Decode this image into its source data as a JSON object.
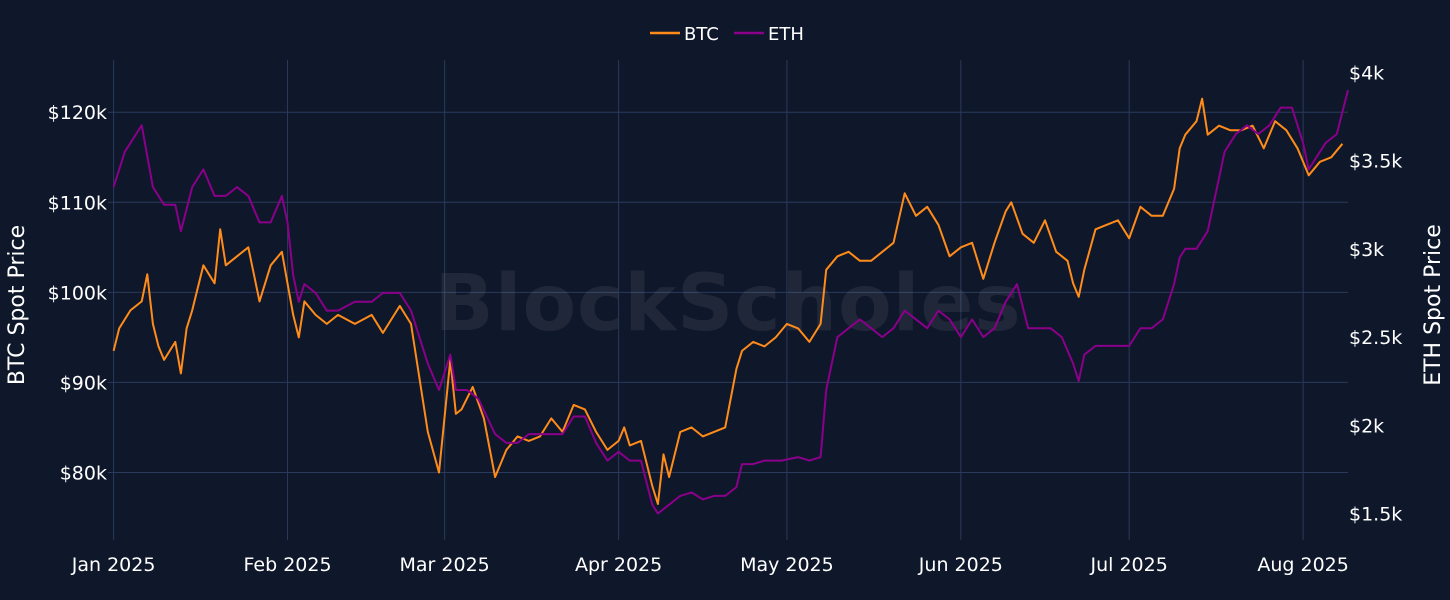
{
  "chart_data": {
    "type": "line",
    "title": "",
    "xlabel": "",
    "watermark": "BlockScholes",
    "legend_position": "top-center",
    "grid": true,
    "colors": {
      "background": "#0f172a",
      "grid": "#2a3a5c",
      "btc": "#ff8c1a",
      "eth": "#8b008b"
    },
    "x_range": [
      "2024-12-31",
      "2025-08-09"
    ],
    "x_ticks": [
      {
        "date": "2025-01-01",
        "label": "Jan 2025"
      },
      {
        "date": "2025-02-01",
        "label": "Feb 2025"
      },
      {
        "date": "2025-03-01",
        "label": "Mar 2025"
      },
      {
        "date": "2025-04-01",
        "label": "Apr 2025"
      },
      {
        "date": "2025-05-01",
        "label": "May 2025"
      },
      {
        "date": "2025-06-01",
        "label": "Jun 2025"
      },
      {
        "date": "2025-07-01",
        "label": "Jul 2025"
      },
      {
        "date": "2025-08-01",
        "label": "Aug 2025"
      }
    ],
    "y_left": {
      "label": "BTC Spot Price",
      "range": [
        72500,
        125800
      ],
      "ticks": [
        {
          "value": 80000,
          "label": "$80k"
        },
        {
          "value": 90000,
          "label": "$90k"
        },
        {
          "value": 100000,
          "label": "$100k"
        },
        {
          "value": 110000,
          "label": "$110k"
        },
        {
          "value": 120000,
          "label": "$120k"
        }
      ]
    },
    "y_right": {
      "label": "ETH Spot Price",
      "range": [
        1350,
        4070
      ],
      "ticks": [
        {
          "value": 1500,
          "label": "$1.5k"
        },
        {
          "value": 2000,
          "label": "$2k"
        },
        {
          "value": 2500,
          "label": "$2.5k"
        },
        {
          "value": 3000,
          "label": "$3k"
        },
        {
          "value": 3500,
          "label": "$3.5k"
        },
        {
          "value": 4000,
          "label": "$4k"
        }
      ]
    },
    "series": [
      {
        "name": "BTC",
        "axis": "left",
        "points": [
          [
            "2025-01-01",
            93500
          ],
          [
            "2025-01-02",
            96000
          ],
          [
            "2025-01-04",
            98000
          ],
          [
            "2025-01-06",
            99000
          ],
          [
            "2025-01-07",
            102000
          ],
          [
            "2025-01-08",
            96500
          ],
          [
            "2025-01-09",
            94000
          ],
          [
            "2025-01-10",
            92500
          ],
          [
            "2025-01-12",
            94500
          ],
          [
            "2025-01-13",
            91000
          ],
          [
            "2025-01-14",
            96000
          ],
          [
            "2025-01-15",
            98000
          ],
          [
            "2025-01-17",
            103000
          ],
          [
            "2025-01-19",
            101000
          ],
          [
            "2025-01-20",
            107000
          ],
          [
            "2025-01-21",
            103000
          ],
          [
            "2025-01-23",
            104000
          ],
          [
            "2025-01-25",
            105000
          ],
          [
            "2025-01-27",
            99000
          ],
          [
            "2025-01-29",
            103000
          ],
          [
            "2025-01-31",
            104500
          ],
          [
            "2025-02-01",
            101000
          ],
          [
            "2025-02-02",
            97500
          ],
          [
            "2025-02-03",
            95000
          ],
          [
            "2025-02-04",
            99000
          ],
          [
            "2025-02-06",
            97500
          ],
          [
            "2025-02-08",
            96500
          ],
          [
            "2025-02-10",
            97500
          ],
          [
            "2025-02-13",
            96500
          ],
          [
            "2025-02-16",
            97500
          ],
          [
            "2025-02-18",
            95500
          ],
          [
            "2025-02-21",
            98500
          ],
          [
            "2025-02-23",
            96500
          ],
          [
            "2025-02-25",
            88500
          ],
          [
            "2025-02-26",
            84500
          ],
          [
            "2025-02-28",
            80000
          ],
          [
            "2025-03-02",
            92500
          ],
          [
            "2025-03-03",
            86500
          ],
          [
            "2025-03-04",
            87000
          ],
          [
            "2025-03-06",
            89500
          ],
          [
            "2025-03-08",
            86000
          ],
          [
            "2025-03-10",
            79500
          ],
          [
            "2025-03-12",
            82500
          ],
          [
            "2025-03-14",
            84000
          ],
          [
            "2025-03-16",
            83500
          ],
          [
            "2025-03-18",
            84000
          ],
          [
            "2025-03-20",
            86000
          ],
          [
            "2025-03-22",
            84500
          ],
          [
            "2025-03-24",
            87500
          ],
          [
            "2025-03-26",
            87000
          ],
          [
            "2025-03-28",
            84500
          ],
          [
            "2025-03-30",
            82500
          ],
          [
            "2025-04-01",
            83500
          ],
          [
            "2025-04-02",
            85000
          ],
          [
            "2025-04-03",
            83000
          ],
          [
            "2025-04-05",
            83500
          ],
          [
            "2025-04-07",
            78500
          ],
          [
            "2025-04-08",
            76500
          ],
          [
            "2025-04-09",
            82000
          ],
          [
            "2025-04-10",
            79500
          ],
          [
            "2025-04-12",
            84500
          ],
          [
            "2025-04-14",
            85000
          ],
          [
            "2025-04-16",
            84000
          ],
          [
            "2025-04-18",
            84500
          ],
          [
            "2025-04-20",
            85000
          ],
          [
            "2025-04-22",
            91500
          ],
          [
            "2025-04-23",
            93500
          ],
          [
            "2025-04-25",
            94500
          ],
          [
            "2025-04-27",
            94000
          ],
          [
            "2025-04-29",
            95000
          ],
          [
            "2025-05-01",
            96500
          ],
          [
            "2025-05-03",
            96000
          ],
          [
            "2025-05-05",
            94500
          ],
          [
            "2025-05-07",
            96500
          ],
          [
            "2025-05-08",
            102500
          ],
          [
            "2025-05-10",
            104000
          ],
          [
            "2025-05-12",
            104500
          ],
          [
            "2025-05-14",
            103500
          ],
          [
            "2025-05-16",
            103500
          ],
          [
            "2025-05-18",
            104500
          ],
          [
            "2025-05-20",
            105500
          ],
          [
            "2025-05-22",
            111000
          ],
          [
            "2025-05-24",
            108500
          ],
          [
            "2025-05-26",
            109500
          ],
          [
            "2025-05-28",
            107500
          ],
          [
            "2025-05-30",
            104000
          ],
          [
            "2025-06-01",
            105000
          ],
          [
            "2025-06-03",
            105500
          ],
          [
            "2025-06-05",
            101500
          ],
          [
            "2025-06-07",
            105500
          ],
          [
            "2025-06-09",
            109000
          ],
          [
            "2025-06-10",
            110000
          ],
          [
            "2025-06-12",
            106500
          ],
          [
            "2025-06-14",
            105500
          ],
          [
            "2025-06-16",
            108000
          ],
          [
            "2025-06-18",
            104500
          ],
          [
            "2025-06-20",
            103500
          ],
          [
            "2025-06-21",
            101000
          ],
          [
            "2025-06-22",
            99500
          ],
          [
            "2025-06-23",
            102500
          ],
          [
            "2025-06-25",
            107000
          ],
          [
            "2025-06-27",
            107500
          ],
          [
            "2025-06-29",
            108000
          ],
          [
            "2025-07-01",
            106000
          ],
          [
            "2025-07-03",
            109500
          ],
          [
            "2025-07-05",
            108500
          ],
          [
            "2025-07-07",
            108500
          ],
          [
            "2025-07-09",
            111500
          ],
          [
            "2025-07-10",
            116000
          ],
          [
            "2025-07-11",
            117500
          ],
          [
            "2025-07-13",
            119000
          ],
          [
            "2025-07-14",
            121500
          ],
          [
            "2025-07-15",
            117500
          ],
          [
            "2025-07-17",
            118500
          ],
          [
            "2025-07-19",
            118000
          ],
          [
            "2025-07-21",
            118000
          ],
          [
            "2025-07-23",
            118500
          ],
          [
            "2025-07-25",
            116000
          ],
          [
            "2025-07-27",
            119000
          ],
          [
            "2025-07-29",
            118000
          ],
          [
            "2025-07-31",
            116000
          ],
          [
            "2025-08-02",
            113000
          ],
          [
            "2025-08-04",
            114500
          ],
          [
            "2025-08-06",
            115000
          ],
          [
            "2025-08-08",
            116500
          ]
        ]
      },
      {
        "name": "ETH",
        "axis": "right",
        "points": [
          [
            "2025-01-01",
            3350
          ],
          [
            "2025-01-03",
            3550
          ],
          [
            "2025-01-05",
            3650
          ],
          [
            "2025-01-06",
            3700
          ],
          [
            "2025-01-08",
            3350
          ],
          [
            "2025-01-10",
            3250
          ],
          [
            "2025-01-12",
            3250
          ],
          [
            "2025-01-13",
            3100
          ],
          [
            "2025-01-15",
            3350
          ],
          [
            "2025-01-17",
            3450
          ],
          [
            "2025-01-19",
            3300
          ],
          [
            "2025-01-21",
            3300
          ],
          [
            "2025-01-23",
            3350
          ],
          [
            "2025-01-25",
            3300
          ],
          [
            "2025-01-27",
            3150
          ],
          [
            "2025-01-29",
            3150
          ],
          [
            "2025-01-31",
            3300
          ],
          [
            "2025-02-01",
            3150
          ],
          [
            "2025-02-02",
            2850
          ],
          [
            "2025-02-03",
            2700
          ],
          [
            "2025-02-04",
            2800
          ],
          [
            "2025-02-06",
            2750
          ],
          [
            "2025-02-08",
            2650
          ],
          [
            "2025-02-10",
            2650
          ],
          [
            "2025-02-13",
            2700
          ],
          [
            "2025-02-16",
            2700
          ],
          [
            "2025-02-18",
            2750
          ],
          [
            "2025-02-21",
            2750
          ],
          [
            "2025-02-23",
            2650
          ],
          [
            "2025-02-25",
            2450
          ],
          [
            "2025-02-26",
            2350
          ],
          [
            "2025-02-28",
            2200
          ],
          [
            "2025-03-02",
            2400
          ],
          [
            "2025-03-03",
            2200
          ],
          [
            "2025-03-05",
            2200
          ],
          [
            "2025-03-07",
            2150
          ],
          [
            "2025-03-10",
            1950
          ],
          [
            "2025-03-12",
            1900
          ],
          [
            "2025-03-14",
            1900
          ],
          [
            "2025-03-16",
            1950
          ],
          [
            "2025-03-18",
            1950
          ],
          [
            "2025-03-20",
            1950
          ],
          [
            "2025-03-22",
            1950
          ],
          [
            "2025-03-24",
            2050
          ],
          [
            "2025-03-26",
            2050
          ],
          [
            "2025-03-28",
            1900
          ],
          [
            "2025-03-30",
            1800
          ],
          [
            "2025-04-01",
            1850
          ],
          [
            "2025-04-03",
            1800
          ],
          [
            "2025-04-05",
            1800
          ],
          [
            "2025-04-07",
            1550
          ],
          [
            "2025-04-08",
            1500
          ],
          [
            "2025-04-10",
            1550
          ],
          [
            "2025-04-12",
            1600
          ],
          [
            "2025-04-14",
            1620
          ],
          [
            "2025-04-16",
            1580
          ],
          [
            "2025-04-18",
            1600
          ],
          [
            "2025-04-20",
            1600
          ],
          [
            "2025-04-22",
            1650
          ],
          [
            "2025-04-23",
            1780
          ],
          [
            "2025-04-25",
            1780
          ],
          [
            "2025-04-27",
            1800
          ],
          [
            "2025-04-30",
            1800
          ],
          [
            "2025-05-03",
            1820
          ],
          [
            "2025-05-05",
            1800
          ],
          [
            "2025-05-07",
            1820
          ],
          [
            "2025-05-08",
            2200
          ],
          [
            "2025-05-10",
            2500
          ],
          [
            "2025-05-12",
            2550
          ],
          [
            "2025-05-14",
            2600
          ],
          [
            "2025-05-16",
            2550
          ],
          [
            "2025-05-18",
            2500
          ],
          [
            "2025-05-20",
            2550
          ],
          [
            "2025-05-22",
            2650
          ],
          [
            "2025-05-24",
            2600
          ],
          [
            "2025-05-26",
            2550
          ],
          [
            "2025-05-28",
            2650
          ],
          [
            "2025-05-30",
            2600
          ],
          [
            "2025-06-01",
            2500
          ],
          [
            "2025-06-03",
            2600
          ],
          [
            "2025-06-05",
            2500
          ],
          [
            "2025-06-07",
            2550
          ],
          [
            "2025-06-09",
            2700
          ],
          [
            "2025-06-11",
            2800
          ],
          [
            "2025-06-13",
            2550
          ],
          [
            "2025-06-15",
            2550
          ],
          [
            "2025-06-17",
            2550
          ],
          [
            "2025-06-19",
            2500
          ],
          [
            "2025-06-21",
            2350
          ],
          [
            "2025-06-22",
            2250
          ],
          [
            "2025-06-23",
            2400
          ],
          [
            "2025-06-25",
            2450
          ],
          [
            "2025-06-27",
            2450
          ],
          [
            "2025-06-29",
            2450
          ],
          [
            "2025-07-01",
            2450
          ],
          [
            "2025-07-03",
            2550
          ],
          [
            "2025-07-05",
            2550
          ],
          [
            "2025-07-07",
            2600
          ],
          [
            "2025-07-09",
            2800
          ],
          [
            "2025-07-10",
            2950
          ],
          [
            "2025-07-11",
            3000
          ],
          [
            "2025-07-13",
            3000
          ],
          [
            "2025-07-15",
            3100
          ],
          [
            "2025-07-17",
            3400
          ],
          [
            "2025-07-18",
            3550
          ],
          [
            "2025-07-20",
            3650
          ],
          [
            "2025-07-22",
            3700
          ],
          [
            "2025-07-24",
            3650
          ],
          [
            "2025-07-26",
            3700
          ],
          [
            "2025-07-28",
            3800
          ],
          [
            "2025-07-30",
            3800
          ],
          [
            "2025-08-01",
            3600
          ],
          [
            "2025-08-02",
            3450
          ],
          [
            "2025-08-03",
            3500
          ],
          [
            "2025-08-05",
            3600
          ],
          [
            "2025-08-07",
            3650
          ],
          [
            "2025-08-09",
            3900
          ]
        ]
      }
    ]
  }
}
